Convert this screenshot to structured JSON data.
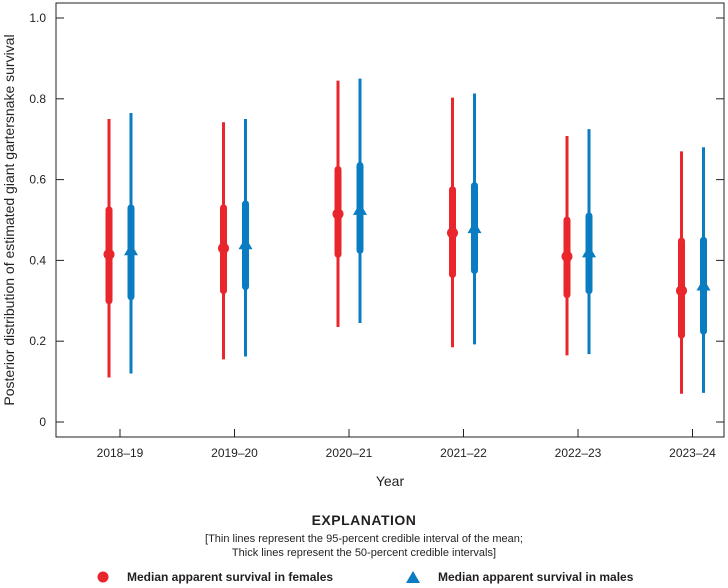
{
  "chart_data": {
    "type": "interval",
    "xlabel": "Year",
    "ylabel": "Posterior distribution of estimated giant gartersnake survival",
    "ylim": [
      0,
      1.0
    ],
    "yticks": [
      "0",
      "0.2",
      "0.4",
      "0.6",
      "0.8",
      "1.0"
    ],
    "categories": [
      "2018–19",
      "2019–20",
      "2020–21",
      "2021–22",
      "2022–23",
      "2023–24"
    ],
    "series": [
      {
        "name": "Median apparent survival in females",
        "color": "#e8262b",
        "marker": "circle",
        "median": [
          0.415,
          0.43,
          0.515,
          0.468,
          0.41,
          0.325
        ],
        "ci95_low": [
          0.11,
          0.155,
          0.235,
          0.185,
          0.165,
          0.07
        ],
        "ci95_high": [
          0.75,
          0.742,
          0.845,
          0.803,
          0.708,
          0.67
        ],
        "ci50_low": [
          0.3,
          0.325,
          0.415,
          0.365,
          0.315,
          0.215
        ],
        "ci50_high": [
          0.525,
          0.53,
          0.625,
          0.575,
          0.5,
          0.448
        ]
      },
      {
        "name": "Median apparent survival in males",
        "color": "#0a7cc1",
        "marker": "triangle",
        "median": [
          0.425,
          0.44,
          0.525,
          0.48,
          0.42,
          0.338
        ],
        "ci95_low": [
          0.12,
          0.162,
          0.245,
          0.192,
          0.168,
          0.072
        ],
        "ci95_high": [
          0.765,
          0.75,
          0.85,
          0.813,
          0.725,
          0.68
        ],
        "ci50_low": [
          0.31,
          0.335,
          0.425,
          0.375,
          0.325,
          0.225
        ],
        "ci50_high": [
          0.53,
          0.54,
          0.635,
          0.585,
          0.51,
          0.45
        ]
      }
    ]
  },
  "explanation": {
    "title": "EXPLANATION",
    "note_line1": "[Thin lines represent the 95-percent credible interval of the mean;",
    "note_line2": "Thick lines represent the 50-percent credible intervals]",
    "female_label": "Median apparent survival in females",
    "male_label": "Median apparent survival in males"
  }
}
